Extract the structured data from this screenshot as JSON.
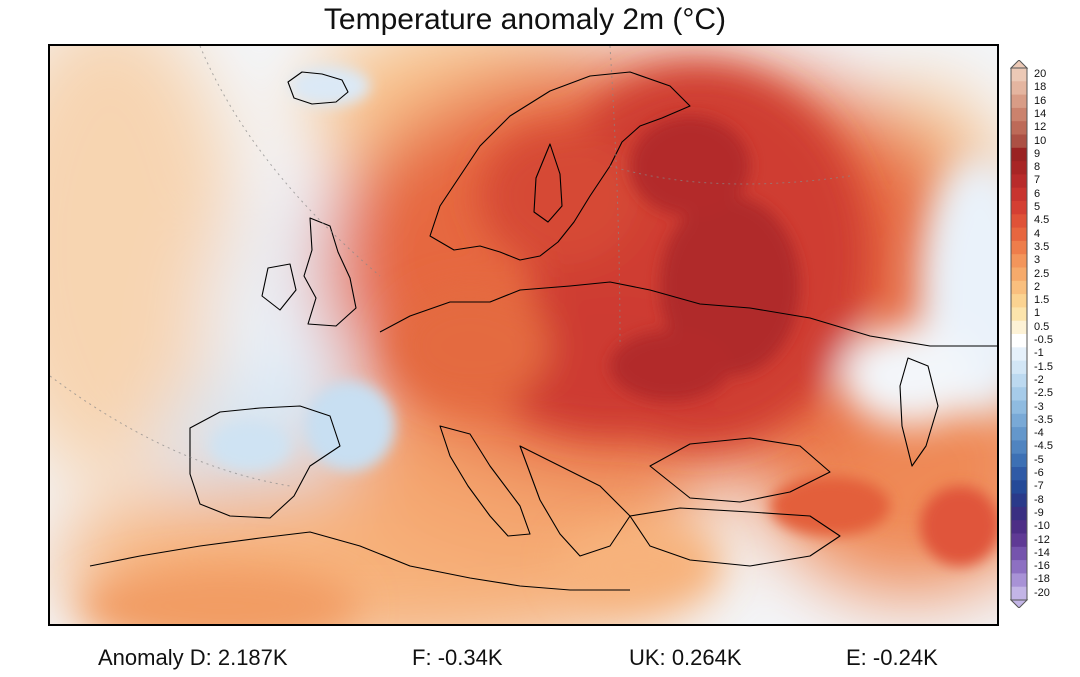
{
  "title": "Temperature anomaly 2m (°C)",
  "colorbar": {
    "levels": [
      "20",
      "18",
      "16",
      "14",
      "12",
      "10",
      "9",
      "8",
      "7",
      "6",
      "5",
      "4.5",
      "4",
      "3.5",
      "3",
      "2.5",
      "2",
      "1.5",
      "1",
      "0.5",
      "-0.5",
      "-1",
      "-1.5",
      "-2",
      "-2.5",
      "-3",
      "-3.5",
      "-4",
      "-4.5",
      "-5",
      "-6",
      "-7",
      "-8",
      "-9",
      "-10",
      "-12",
      "-14",
      "-16",
      "-18",
      "-20"
    ],
    "colors": [
      "#ecc9b6",
      "#e4b5a0",
      "#d89c86",
      "#cb826d",
      "#bd6a58",
      "#ac5044",
      "#9a2222",
      "#a82525",
      "#b82b2b",
      "#c8342f",
      "#d43f33",
      "#df5238",
      "#e7663f",
      "#ee7d4b",
      "#f3955b",
      "#f6aa6b",
      "#f9bf7e",
      "#fbd391",
      "#fce4ac",
      "#fdf2d6",
      "#ffffff",
      "#e6f1fb",
      "#d2e6f6",
      "#bcd9f0",
      "#a6cbe9",
      "#8fbbe0",
      "#79a9d6",
      "#6497cb",
      "#5084c0",
      "#3d70b4",
      "#2f5aa6",
      "#254a98",
      "#2a3a8a",
      "#3a2f82",
      "#4d2e86",
      "#5f3a95",
      "#7554ad",
      "#8d70c2",
      "#a892d6",
      "#c3b5e6"
    ]
  },
  "stats": [
    {
      "label": "Anomaly D:",
      "value": "2.187K"
    },
    {
      "label": "F:",
      "value": "-0.34K"
    },
    {
      "label": "UK:",
      "value": "0.264K"
    },
    {
      "label": "E:",
      "value": "-0.24K"
    }
  ]
}
